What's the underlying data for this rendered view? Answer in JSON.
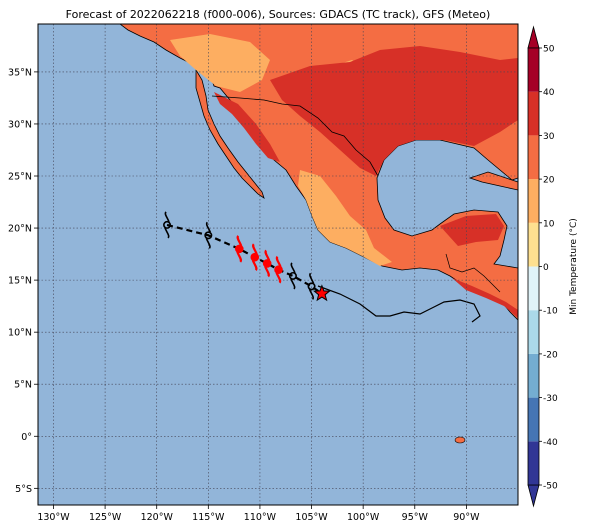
{
  "title": "Forecast of 2022062218 (f000-006), Sources: GDACS (TC track), GFS (Meteo)",
  "map": {
    "lon_range": [
      -131.5,
      -85.0
    ],
    "lat_range": [
      -6.6,
      39.6
    ],
    "lon_ticks": [
      {
        "value": -130,
        "label": "130°W"
      },
      {
        "value": -125,
        "label": "125°W"
      },
      {
        "value": -120,
        "label": "120°W"
      },
      {
        "value": -115,
        "label": "115°W"
      },
      {
        "value": -110,
        "label": "110°W"
      },
      {
        "value": -105,
        "label": "105°W"
      },
      {
        "value": -100,
        "label": "100°W"
      },
      {
        "value": -95,
        "label": "95°W"
      },
      {
        "value": -90,
        "label": "90°W"
      }
    ],
    "lat_ticks": [
      {
        "value": 35,
        "label": "35°N"
      },
      {
        "value": 30,
        "label": "30°N"
      },
      {
        "value": 25,
        "label": "25°N"
      },
      {
        "value": 20,
        "label": "20°N"
      },
      {
        "value": 15,
        "label": "15°N"
      },
      {
        "value": 10,
        "label": "10°N"
      },
      {
        "value": 5,
        "label": "5°N"
      },
      {
        "value": 0,
        "label": "0°"
      },
      {
        "value": -5,
        "label": "5°S"
      }
    ],
    "ocean_color": "#92b5d9",
    "grid": true
  },
  "colorbar": {
    "label": "Min Temperature (°C)",
    "ticks": [
      "-50",
      "-40",
      "-30",
      "-20",
      "-10",
      "0",
      "10",
      "20",
      "30",
      "40",
      "50"
    ],
    "colors": [
      "#313695",
      "#4575b4",
      "#74add1",
      "#abd9e9",
      "#e0f3f8",
      "#fee090",
      "#fdae61",
      "#f46d43",
      "#d73027",
      "#a50026"
    ]
  },
  "track": {
    "points": [
      {
        "lon": -119.0,
        "lat": 20.3,
        "kind": "forecast"
      },
      {
        "lon": -115.0,
        "lat": 19.3,
        "kind": "forecast"
      },
      {
        "lon": -112.0,
        "lat": 18.0,
        "kind": "observed"
      },
      {
        "lon": -110.5,
        "lat": 17.2,
        "kind": "observed"
      },
      {
        "lon": -109.3,
        "lat": 16.6,
        "kind": "observed"
      },
      {
        "lon": -108.2,
        "lat": 16.0,
        "kind": "observed"
      },
      {
        "lon": -106.8,
        "lat": 15.4,
        "kind": "forecast"
      },
      {
        "lon": -105.0,
        "lat": 14.4,
        "kind": "forecast"
      }
    ],
    "current": {
      "lon": -104.0,
      "lat": 13.7
    }
  }
}
